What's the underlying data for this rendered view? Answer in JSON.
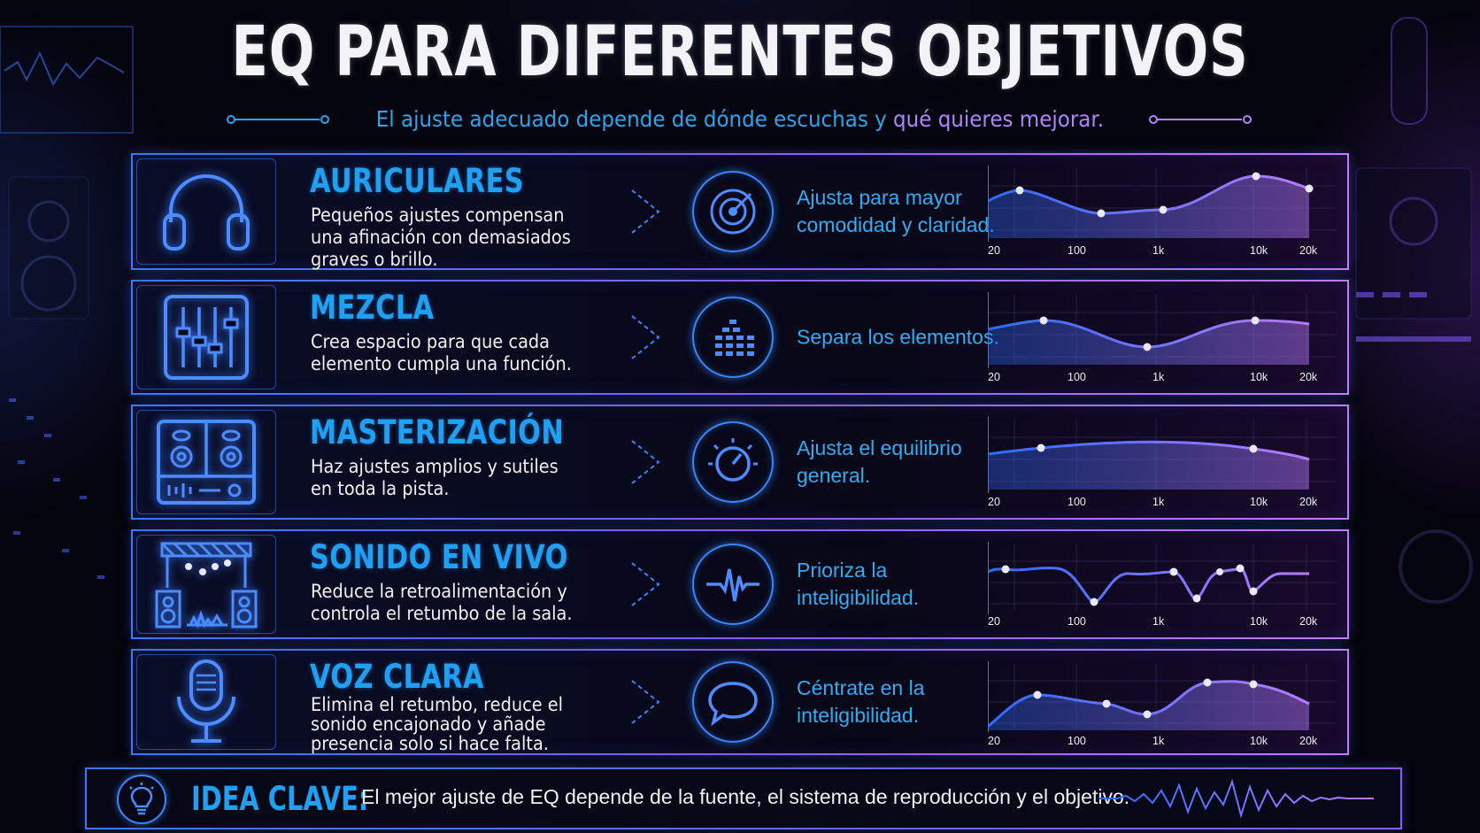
{
  "header": {
    "title": "EQ PARA DIFERENTES OBJETIVOS",
    "subtitle_part1": "El ajuste adecuado depende de dónde escuchas y",
    "subtitle_part2": " qué quieres mejorar."
  },
  "colors": {
    "accent_blue": "#1fa0f2",
    "accent_purple": "#b383ff",
    "card_border": "#3f73ff"
  },
  "freq_ticks": [
    "20",
    "100",
    "1k",
    "10k",
    "20k"
  ],
  "cards": [
    {
      "title": "AURICULARES",
      "description": "Pequeños ajustes compensan una afinación con demasiados graves o brillo.",
      "goal": "Ajusta para mayor comodidad y claridad.",
      "category_icon": "headphones-icon",
      "goal_icon": "target-icon"
    },
    {
      "title": "MEZCLA",
      "description": "Crea espacio para que cada elemento cumpla una función.",
      "goal": "Separa los elementos.",
      "category_icon": "mixer-faders-icon",
      "goal_icon": "stacked-bars-icon"
    },
    {
      "title": "MASTERIZACIÓN",
      "description": "Haz ajustes amplios y sutiles en toda la pista.",
      "goal": "Ajusta el equilibrio general.",
      "category_icon": "mastering-console-icon",
      "goal_icon": "knob-icon"
    },
    {
      "title": "SONIDO EN VIVO",
      "description": "Reduce la retroalimentación y controla el retumbo de la sala.",
      "goal": "Prioriza la inteligibilidad.",
      "category_icon": "stage-speakers-icon",
      "goal_icon": "waveform-icon"
    },
    {
      "title": "VOZ CLARA",
      "description": "Elimina el retumbo, reduce el sonido encajonado y añade presencia solo si hace falta.",
      "goal": "Céntrate en la inteligibilidad.",
      "category_icon": "microphone-icon",
      "goal_icon": "speech-bubble-icon"
    }
  ],
  "footer": {
    "label": "IDEA CLAVE:",
    "text": "El mejor ajuste de EQ depende de la fuente, el sistema de reproducción y el objetivo.",
    "icon": "lightbulb-icon"
  }
}
